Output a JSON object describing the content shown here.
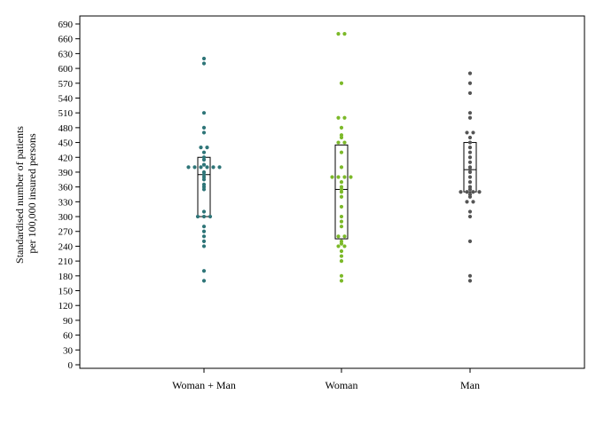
{
  "chart_data": {
    "type": "scatter",
    "subtype": "dot-plot-with-box",
    "title": "",
    "xlabel": "",
    "ylabel": [
      "Standardised number of patients",
      "per 100,000 insured persons"
    ],
    "ylim": [
      0,
      690
    ],
    "yticks": [
      0,
      30,
      60,
      90,
      120,
      150,
      180,
      210,
      240,
      270,
      300,
      330,
      360,
      390,
      420,
      450,
      480,
      510,
      540,
      570,
      600,
      630,
      660,
      690
    ],
    "grid": false,
    "legend": "none",
    "categories": [
      "Woman + Man",
      "Woman",
      "Man"
    ],
    "series": [
      {
        "category": "Woman + Man",
        "color": "#2e7578",
        "box": {
          "q1": 300,
          "median": 385,
          "q3": 420
        },
        "points": [
          620,
          610,
          510,
          480,
          470,
          440,
          440,
          430,
          420,
          415,
          405,
          400,
          400,
          400,
          400,
          400,
          400,
          390,
          385,
          380,
          375,
          365,
          360,
          355,
          310,
          300,
          300,
          300,
          280,
          270,
          260,
          250,
          240,
          190,
          170
        ]
      },
      {
        "category": "Woman",
        "color": "#7cb929",
        "box": {
          "q1": 255,
          "median": 355,
          "q3": 445
        },
        "points": [
          670,
          670,
          570,
          500,
          500,
          480,
          465,
          460,
          450,
          450,
          430,
          400,
          380,
          380,
          380,
          380,
          370,
          360,
          355,
          350,
          340,
          320,
          300,
          290,
          280,
          260,
          260,
          250,
          245,
          240,
          240,
          230,
          220,
          210,
          180,
          170
        ]
      },
      {
        "category": "Man",
        "color": "#555555",
        "box": {
          "q1": 350,
          "median": 395,
          "q3": 450
        },
        "points": [
          590,
          570,
          550,
          510,
          500,
          470,
          470,
          460,
          450,
          440,
          430,
          420,
          410,
          400,
          395,
          390,
          380,
          370,
          360,
          355,
          350,
          350,
          350,
          350,
          345,
          340,
          330,
          330,
          310,
          300,
          250,
          180,
          170
        ]
      }
    ]
  }
}
